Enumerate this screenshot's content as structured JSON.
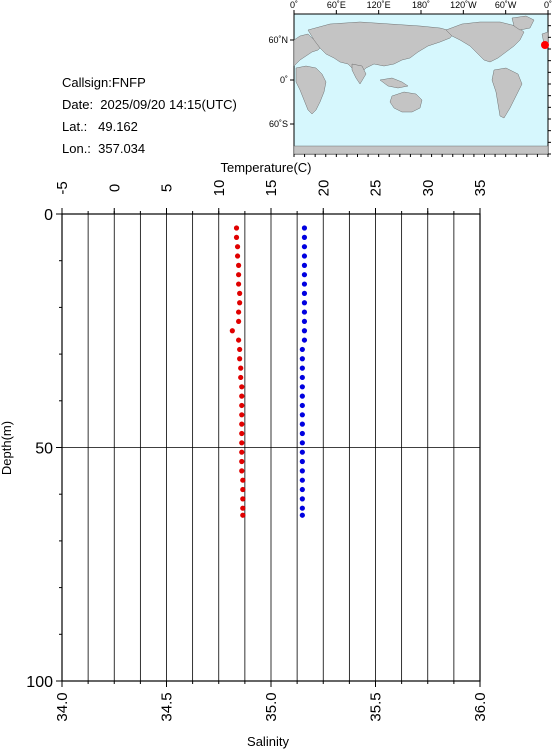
{
  "station": {
    "callsign": "Callsign:FNFP",
    "date": "Date:  2025/09/20 14:15(UTC)",
    "lat": "Lat.:   49.162",
    "lon": "Lon.:  357.034"
  },
  "map": {
    "lon_ticks": [
      "0˚",
      "60˚E",
      "120˚E",
      "180˚",
      "120˚W",
      "60˚W",
      "0˚"
    ],
    "lat_ticks": [
      "60˚N",
      "0˚",
      "60˚S"
    ],
    "ocean_color": "#d6f7fd",
    "land_color": "#c4c4c4",
    "marker_color": "#ff0000",
    "marker_position": {
      "lat": 49.162,
      "lon": 357.034
    }
  },
  "chart_data": {
    "type": "scatter",
    "title": "",
    "y_axis": {
      "label": "Depth(m)",
      "range": [
        0,
        100
      ],
      "ticks": [
        0,
        50,
        100
      ],
      "inverted": true
    },
    "top_axis": {
      "label": "Temperature(C)",
      "range": [
        -5,
        35
      ],
      "ticks": [
        -5,
        0,
        5,
        10,
        15,
        20,
        25,
        30,
        35
      ]
    },
    "bottom_axis": {
      "label": "Salinity",
      "range": [
        34.0,
        36.0
      ],
      "ticks": [
        "34.0",
        "34.5",
        "35.0",
        "35.5",
        "36.0"
      ]
    },
    "grid": true,
    "series": [
      {
        "color": "#e00000",
        "axis": "temperature",
        "depth": [
          3,
          5,
          7,
          9,
          11,
          13,
          15,
          17,
          19,
          21,
          23,
          25,
          27,
          29,
          31,
          33,
          35,
          37,
          39,
          41,
          43,
          45,
          47,
          49,
          51,
          53,
          55,
          57,
          59,
          61,
          63,
          64.5
        ],
        "values": [
          11.7,
          11.7,
          11.8,
          11.8,
          11.9,
          11.9,
          11.9,
          12.0,
          12.0,
          11.9,
          11.9,
          11.3,
          11.9,
          12.0,
          12.0,
          12.1,
          12.1,
          12.2,
          12.2,
          12.2,
          12.2,
          12.2,
          12.2,
          12.2,
          12.2,
          12.2,
          12.2,
          12.3,
          12.3,
          12.3,
          12.3,
          12.3
        ]
      },
      {
        "color": "#0000e0",
        "axis": "salinity",
        "depth": [
          3,
          5,
          7,
          9,
          11,
          13,
          15,
          17,
          19,
          21,
          23,
          25,
          27,
          29,
          31,
          33,
          35,
          37,
          39,
          41,
          43,
          45,
          47,
          49,
          51,
          53,
          55,
          57,
          59,
          61,
          63,
          64.5
        ],
        "values": [
          35.16,
          35.16,
          35.16,
          35.16,
          35.16,
          35.16,
          35.16,
          35.16,
          35.16,
          35.16,
          35.16,
          35.16,
          35.16,
          35.15,
          35.15,
          35.15,
          35.15,
          35.15,
          35.15,
          35.15,
          35.15,
          35.15,
          35.15,
          35.15,
          35.15,
          35.15,
          35.15,
          35.15,
          35.15,
          35.15,
          35.15,
          35.15
        ]
      }
    ]
  }
}
